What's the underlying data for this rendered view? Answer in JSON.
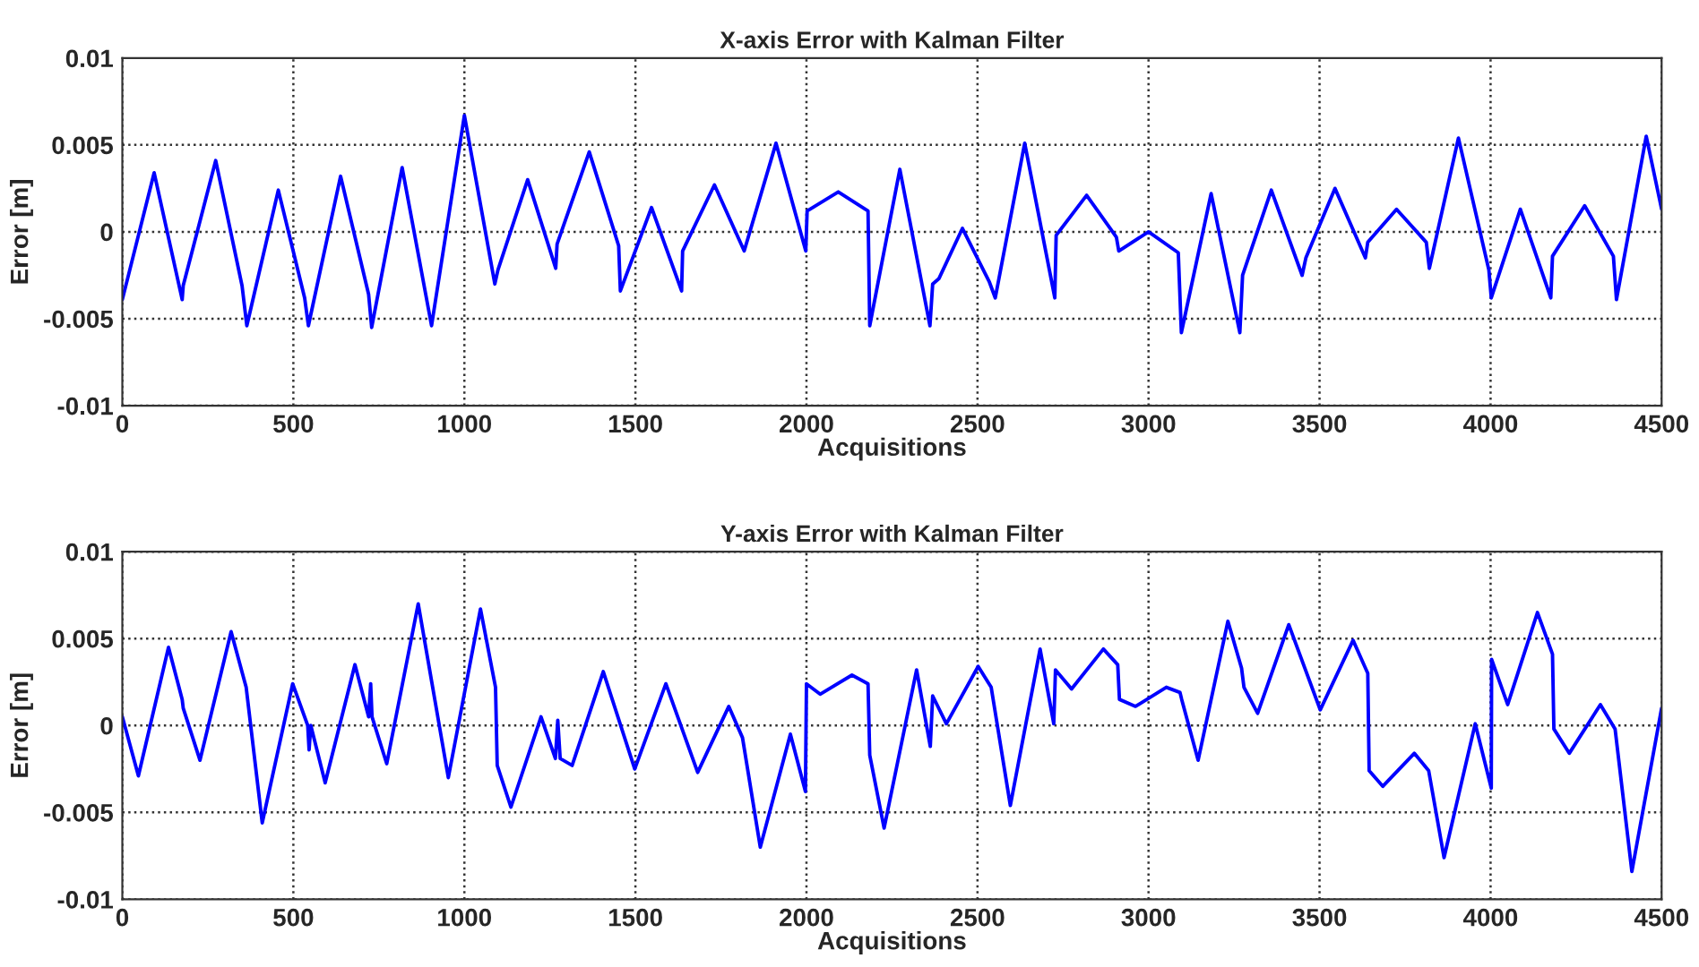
{
  "chart_data": [
    {
      "type": "line",
      "title": "X-axis Error with Kalman Filter",
      "xlabel": "Acquisitions",
      "ylabel": "Error [m]",
      "xlim": [
        0,
        4500
      ],
      "xticks": [
        0,
        500,
        1000,
        1500,
        2000,
        2500,
        3000,
        3500,
        4000,
        4500
      ],
      "ylim": [
        -0.01,
        0.01
      ],
      "yticks": [
        -0.01,
        -0.005,
        0,
        0.005,
        0.01
      ],
      "grid": true,
      "line_style": "solid",
      "series": [
        {
          "color": "#0000ff",
          "x": [
            0,
            93,
            175,
            178,
            273,
            350,
            364,
            456,
            533,
            544,
            638,
            720,
            729,
            818,
            904,
            1000,
            1089,
            1098,
            1185,
            1267,
            1271,
            1365,
            1451,
            1456,
            1547,
            1635,
            1638,
            1731,
            1818,
            1911,
            1998,
            2002,
            2093,
            2180,
            2185,
            2273,
            2361,
            2369,
            2387,
            2456,
            2535,
            2552,
            2638,
            2726,
            2730,
            2819,
            2906,
            2913,
            3000,
            3087,
            3096,
            3183,
            3267,
            3275,
            3359,
            3449,
            3460,
            3545,
            3634,
            3641,
            3725,
            3812,
            3821,
            3906,
            3995,
            4002,
            4087,
            4176,
            4181,
            4275,
            4359,
            4368,
            4455,
            4500
          ],
          "values": [
            -0.0039,
            0.0034,
            -0.0039,
            -0.0031,
            0.0041,
            -0.0031,
            -0.0054,
            0.0024,
            -0.0038,
            -0.0054,
            0.0032,
            -0.0036,
            -0.0055,
            0.0037,
            -0.0054,
            0.0067,
            -0.003,
            -0.0022,
            0.003,
            -0.0021,
            -0.0007,
            0.0046,
            -0.0008,
            -0.0034,
            0.0014,
            -0.0034,
            -0.0011,
            0.0027,
            -0.0011,
            0.0051,
            -0.0011,
            0.0012,
            0.0023,
            0.0012,
            -0.0054,
            0.0036,
            -0.0054,
            -0.003,
            -0.0027,
            0.0002,
            -0.0029,
            -0.0038,
            0.0051,
            -0.0038,
            -0.0002,
            0.0021,
            -0.0003,
            -0.0011,
            0,
            -0.0012,
            -0.0058,
            0.0022,
            -0.0058,
            -0.0025,
            0.0024,
            -0.0025,
            -0.0015,
            0.0025,
            -0.0015,
            -0.0006,
            0.0013,
            -0.0006,
            -0.0021,
            0.0054,
            -0.0022,
            -0.0038,
            0.0013,
            -0.0038,
            -0.0014,
            0.0015,
            -0.0014,
            -0.0039,
            0.0055,
            0.0013
          ]
        }
      ]
    },
    {
      "type": "line",
      "title": "Y-axis Error with Kalman Filter",
      "xlabel": "Acquisitions",
      "ylabel": "Error [m]",
      "xlim": [
        0,
        4500
      ],
      "xticks": [
        0,
        500,
        1000,
        1500,
        2000,
        2500,
        3000,
        3500,
        4000,
        4500
      ],
      "ylim": [
        -0.01,
        0.01
      ],
      "yticks": [
        -0.01,
        -0.005,
        0,
        0.005,
        0.01
      ],
      "grid": true,
      "line_style": "solid",
      "series": [
        {
          "color": "#0000ff",
          "x": [
            0,
            47,
            135,
            175,
            178,
            227,
            318,
            362,
            409,
            498,
            542,
            546,
            551,
            593,
            680,
            720,
            726,
            730,
            773,
            865,
            953,
            1047,
            1091,
            1096,
            1136,
            1224,
            1266,
            1273,
            1280,
            1315,
            1406,
            1498,
            1589,
            1682,
            1773,
            1813,
            1865,
            1953,
            1997,
            2000,
            2040,
            2133,
            2180,
            2185,
            2227,
            2322,
            2362,
            2369,
            2409,
            2502,
            2540,
            2596,
            2683,
            2723,
            2728,
            2775,
            2868,
            2910,
            2915,
            2962,
            3052,
            3092,
            3097,
            3145,
            3232,
            3272,
            3279,
            3319,
            3410,
            3502,
            3598,
            3641,
            3645,
            3685,
            3777,
            3819,
            3864,
            3955,
            4002,
            4003,
            4050,
            4137,
            4181,
            4185,
            4230,
            4321,
            4364,
            4413,
            4500
          ],
          "values": [
            0.0005,
            -0.0029,
            0.0045,
            0.0015,
            0.001,
            -0.002,
            0.0054,
            0.0022,
            -0.0056,
            0.0024,
            0,
            -0.0014,
            0,
            -0.0033,
            0.0035,
            0.0005,
            0.0024,
            0.0005,
            -0.0022,
            0.007,
            -0.003,
            0.0067,
            0.0022,
            -0.0023,
            -0.0047,
            0.0005,
            -0.0019,
            0.0003,
            -0.0019,
            -0.0023,
            0.0031,
            -0.0025,
            0.0024,
            -0.0027,
            0.0011,
            -0.0007,
            -0.007,
            -0.0005,
            -0.0038,
            0.0024,
            0.0018,
            0.0029,
            0.0024,
            -0.0017,
            -0.0059,
            0.0032,
            -0.0012,
            0.0017,
            0.0001,
            0.0034,
            0.0022,
            -0.0046,
            0.0044,
            0.0001,
            0.0032,
            0.0021,
            0.0044,
            0.0035,
            0.0015,
            0.0011,
            0.0022,
            0.0019,
            0.0015,
            -0.002,
            0.006,
            0.0033,
            0.0022,
            0.0007,
            0.0058,
            0.0009,
            0.0049,
            0.003,
            -0.0026,
            -0.0035,
            -0.0016,
            -0.0026,
            -0.0076,
            0.0001,
            -0.0036,
            0.0038,
            0.0012,
            0.0065,
            0.0041,
            -0.0002,
            -0.0016,
            0.0012,
            -0.0002,
            -0.0084,
            0.001
          ]
        }
      ]
    }
  ]
}
